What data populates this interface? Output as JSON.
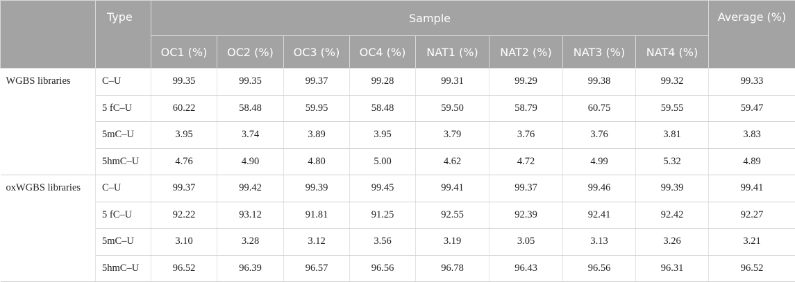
{
  "table": {
    "header": {
      "type": "Type",
      "sample": "Sample",
      "average": "Average (%)",
      "columns": [
        "OC1 (%)",
        "OC2 (%)",
        "OC3 (%)",
        "OC4 (%)",
        "NAT1 (%)",
        "NAT2 (%)",
        "NAT3 (%)",
        "NAT4 (%)"
      ]
    },
    "groups": [
      {
        "label": "WGBS libraries",
        "rows": [
          {
            "type": "C–U",
            "values": [
              "99.35",
              "99.35",
              "99.37",
              "99.28",
              "99.31",
              "99.29",
              "99.38",
              "99.32"
            ],
            "average": "99.33"
          },
          {
            "type": "5 fC–U",
            "values": [
              "60.22",
              "58.48",
              "59.95",
              "58.48",
              "59.50",
              "58.79",
              "60.75",
              "59.55"
            ],
            "average": "59.47"
          },
          {
            "type": "5mC–U",
            "values": [
              "3.95",
              "3.74",
              "3.89",
              "3.95",
              "3.79",
              "3.76",
              "3.76",
              "3.81"
            ],
            "average": "3.83"
          },
          {
            "type": "5hmC–U",
            "values": [
              "4.76",
              "4.90",
              "4.80",
              "5.00",
              "4.62",
              "4.72",
              "4.99",
              "5.32"
            ],
            "average": "4.89"
          }
        ]
      },
      {
        "label": "oxWGBS libraries",
        "rows": [
          {
            "type": "C–U",
            "values": [
              "99.37",
              "99.42",
              "99.39",
              "99.45",
              "99.41",
              "99.37",
              "99.46",
              "99.39"
            ],
            "average": "99.41"
          },
          {
            "type": "5 fC–U",
            "values": [
              "92.22",
              "93.12",
              "91.81",
              "91.25",
              "92.55",
              "92.39",
              "92.41",
              "92.42"
            ],
            "average": "92.27"
          },
          {
            "type": "5mC–U",
            "values": [
              "3.10",
              "3.28",
              "3.12",
              "3.56",
              "3.19",
              "3.05",
              "3.13",
              "3.26"
            ],
            "average": "3.21"
          },
          {
            "type": "5hmC–U",
            "values": [
              "96.52",
              "96.39",
              "96.57",
              "96.56",
              "96.78",
              "96.43",
              "96.56",
              "96.31"
            ],
            "average": "96.52"
          }
        ]
      }
    ]
  }
}
